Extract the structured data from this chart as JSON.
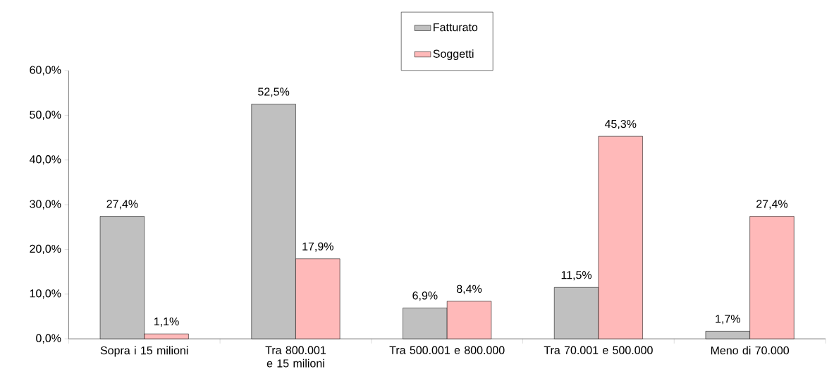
{
  "chart_data": {
    "type": "bar",
    "categories": [
      "Sopra i 15 milioni",
      "Tra 800.001 e 15 milioni",
      "Tra 500.001 e 800.000",
      "Tra 70.001 e 500.000",
      "Meno di 70.000"
    ],
    "series": [
      {
        "name": "Fatturato",
        "color": "#c0c0c0",
        "values": [
          27.4,
          52.5,
          6.9,
          11.5,
          1.7
        ],
        "value_labels": [
          "27,4%",
          "52,5%",
          "6,9%",
          "11,5%",
          "1,7%"
        ]
      },
      {
        "name": "Soggetti",
        "color": "#ffb9b9",
        "values": [
          1.1,
          17.9,
          8.4,
          45.3,
          27.4
        ],
        "value_labels": [
          "1,1%",
          "17,9%",
          "8,4%",
          "45,3%",
          "27,4%"
        ]
      }
    ],
    "ylim": [
      0,
      60
    ],
    "yticks": [
      {
        "value": 0,
        "label": "0,0%"
      },
      {
        "value": 10,
        "label": "10,0%"
      },
      {
        "value": 20,
        "label": "20,0%"
      },
      {
        "value": 30,
        "label": "30,0%"
      },
      {
        "value": 40,
        "label": "40,0%"
      },
      {
        "value": 50,
        "label": "50,0%"
      },
      {
        "value": 60,
        "label": "60,0%"
      }
    ],
    "grid": false,
    "legend": "top"
  }
}
